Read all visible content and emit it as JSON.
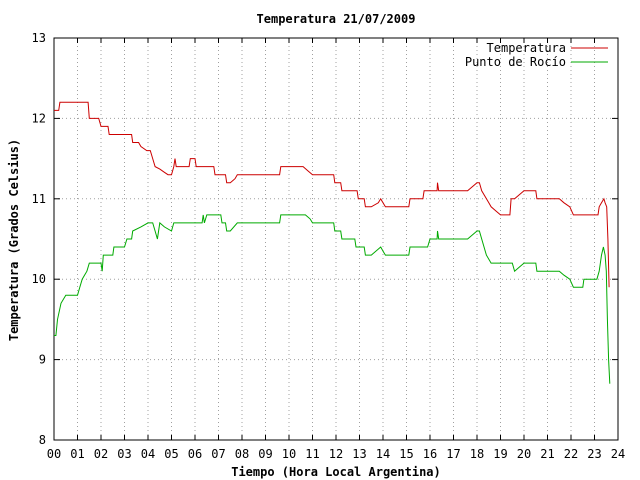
{
  "chart_data": {
    "type": "line",
    "title": "Temperatura 21/07/2009",
    "xlabel": "Tiempo (Hora Local Argentina)",
    "ylabel": "Temperatura (Grados Celsius)",
    "xlim": [
      0,
      24
    ],
    "ylim": [
      8,
      13
    ],
    "x_ticks": [
      "00",
      "01",
      "02",
      "03",
      "04",
      "05",
      "06",
      "07",
      "08",
      "09",
      "10",
      "11",
      "12",
      "13",
      "14",
      "15",
      "16",
      "17",
      "18",
      "19",
      "20",
      "21",
      "22",
      "23",
      "24"
    ],
    "y_ticks": [
      "8",
      "9",
      "10",
      "11",
      "12",
      "13"
    ],
    "grid": true,
    "legend_position": "top-right",
    "series": [
      {
        "name": "Temperatura",
        "color": "#cc0000",
        "points": [
          [
            0.0,
            12.1
          ],
          [
            0.2,
            12.1
          ],
          [
            0.25,
            12.2
          ],
          [
            1.0,
            12.2
          ],
          [
            1.45,
            12.2
          ],
          [
            1.5,
            12.0
          ],
          [
            1.9,
            12.0
          ],
          [
            2.0,
            11.9
          ],
          [
            2.3,
            11.9
          ],
          [
            2.35,
            11.8
          ],
          [
            3.0,
            11.8
          ],
          [
            3.3,
            11.8
          ],
          [
            3.35,
            11.7
          ],
          [
            3.6,
            11.7
          ],
          [
            3.7,
            11.65
          ],
          [
            3.95,
            11.6
          ],
          [
            4.1,
            11.6
          ],
          [
            4.2,
            11.5
          ],
          [
            4.3,
            11.4
          ],
          [
            4.5,
            11.37
          ],
          [
            4.7,
            11.33
          ],
          [
            4.85,
            11.3
          ],
          [
            5.0,
            11.3
          ],
          [
            5.1,
            11.4
          ],
          [
            5.15,
            11.5
          ],
          [
            5.2,
            11.4
          ],
          [
            5.75,
            11.4
          ],
          [
            5.8,
            11.5
          ],
          [
            6.0,
            11.5
          ],
          [
            6.05,
            11.4
          ],
          [
            6.3,
            11.4
          ],
          [
            6.5,
            11.4
          ],
          [
            6.8,
            11.4
          ],
          [
            6.85,
            11.3
          ],
          [
            7.3,
            11.3
          ],
          [
            7.35,
            11.2
          ],
          [
            7.5,
            11.2
          ],
          [
            7.7,
            11.25
          ],
          [
            7.8,
            11.3
          ],
          [
            9.6,
            11.3
          ],
          [
            9.65,
            11.4
          ],
          [
            10.6,
            11.4
          ],
          [
            10.8,
            11.35
          ],
          [
            11.0,
            11.3
          ],
          [
            11.9,
            11.3
          ],
          [
            11.95,
            11.2
          ],
          [
            12.2,
            11.2
          ],
          [
            12.25,
            11.1
          ],
          [
            12.9,
            11.1
          ],
          [
            12.95,
            11.0
          ],
          [
            13.2,
            11.0
          ],
          [
            13.25,
            10.9
          ],
          [
            13.5,
            10.9
          ],
          [
            13.8,
            10.95
          ],
          [
            13.9,
            11.0
          ],
          [
            14.0,
            10.95
          ],
          [
            14.1,
            10.9
          ],
          [
            15.1,
            10.9
          ],
          [
            15.15,
            11.0
          ],
          [
            15.7,
            11.0
          ],
          [
            15.75,
            11.1
          ],
          [
            16.3,
            11.1
          ],
          [
            16.32,
            11.2
          ],
          [
            16.37,
            11.1
          ],
          [
            17.6,
            11.1
          ],
          [
            17.8,
            11.15
          ],
          [
            18.0,
            11.2
          ],
          [
            18.1,
            11.2
          ],
          [
            18.2,
            11.1
          ],
          [
            18.5,
            10.95
          ],
          [
            18.6,
            10.9
          ],
          [
            18.8,
            10.85
          ],
          [
            19.0,
            10.8
          ],
          [
            19.4,
            10.8
          ],
          [
            19.45,
            11.0
          ],
          [
            19.6,
            11.0
          ],
          [
            20.0,
            11.1
          ],
          [
            20.5,
            11.1
          ],
          [
            20.55,
            11.0
          ],
          [
            21.5,
            11.0
          ],
          [
            21.7,
            10.95
          ],
          [
            21.95,
            10.9
          ],
          [
            22.1,
            10.8
          ],
          [
            23.0,
            10.8
          ],
          [
            23.15,
            10.8
          ],
          [
            23.2,
            10.9
          ],
          [
            23.3,
            10.95
          ],
          [
            23.4,
            11.0
          ],
          [
            23.45,
            10.95
          ],
          [
            23.52,
            10.9
          ],
          [
            23.57,
            10.5
          ],
          [
            23.62,
            9.9
          ]
        ]
      },
      {
        "name": "Punto de Rocío",
        "color": "#00aa00",
        "points": [
          [
            0.0,
            9.3
          ],
          [
            0.08,
            9.3
          ],
          [
            0.15,
            9.5
          ],
          [
            0.3,
            9.7
          ],
          [
            0.5,
            9.8
          ],
          [
            1.0,
            9.8
          ],
          [
            1.1,
            9.9
          ],
          [
            1.2,
            10.0
          ],
          [
            1.3,
            10.05
          ],
          [
            1.4,
            10.1
          ],
          [
            1.5,
            10.2
          ],
          [
            2.0,
            10.2
          ],
          [
            2.05,
            10.1
          ],
          [
            2.1,
            10.3
          ],
          [
            2.5,
            10.3
          ],
          [
            2.55,
            10.4
          ],
          [
            3.0,
            10.4
          ],
          [
            3.1,
            10.5
          ],
          [
            3.3,
            10.5
          ],
          [
            3.35,
            10.6
          ],
          [
            3.7,
            10.65
          ],
          [
            4.0,
            10.7
          ],
          [
            4.2,
            10.7
          ],
          [
            4.3,
            10.6
          ],
          [
            4.4,
            10.5
          ],
          [
            4.5,
            10.7
          ],
          [
            4.7,
            10.65
          ],
          [
            5.0,
            10.6
          ],
          [
            5.1,
            10.7
          ],
          [
            6.3,
            10.7
          ],
          [
            6.35,
            10.8
          ],
          [
            6.4,
            10.7
          ],
          [
            6.5,
            10.8
          ],
          [
            7.1,
            10.8
          ],
          [
            7.15,
            10.7
          ],
          [
            7.3,
            10.7
          ],
          [
            7.35,
            10.6
          ],
          [
            7.5,
            10.6
          ],
          [
            7.8,
            10.7
          ],
          [
            9.6,
            10.7
          ],
          [
            9.65,
            10.8
          ],
          [
            10.7,
            10.8
          ],
          [
            10.9,
            10.75
          ],
          [
            11.0,
            10.7
          ],
          [
            11.9,
            10.7
          ],
          [
            11.95,
            10.6
          ],
          [
            12.2,
            10.6
          ],
          [
            12.25,
            10.5
          ],
          [
            12.8,
            10.5
          ],
          [
            12.85,
            10.4
          ],
          [
            13.2,
            10.4
          ],
          [
            13.25,
            10.3
          ],
          [
            13.5,
            10.3
          ],
          [
            13.9,
            10.4
          ],
          [
            14.0,
            10.35
          ],
          [
            14.1,
            10.3
          ],
          [
            15.1,
            10.3
          ],
          [
            15.15,
            10.4
          ],
          [
            15.9,
            10.4
          ],
          [
            16.0,
            10.5
          ],
          [
            16.3,
            10.5
          ],
          [
            16.32,
            10.6
          ],
          [
            16.37,
            10.5
          ],
          [
            17.6,
            10.5
          ],
          [
            17.8,
            10.55
          ],
          [
            18.0,
            10.6
          ],
          [
            18.1,
            10.6
          ],
          [
            18.2,
            10.5
          ],
          [
            18.4,
            10.3
          ],
          [
            18.6,
            10.2
          ],
          [
            19.1,
            10.2
          ],
          [
            19.5,
            10.2
          ],
          [
            19.6,
            10.1
          ],
          [
            19.8,
            10.15
          ],
          [
            20.0,
            10.2
          ],
          [
            20.5,
            10.2
          ],
          [
            20.55,
            10.1
          ],
          [
            21.5,
            10.1
          ],
          [
            21.7,
            10.05
          ],
          [
            21.95,
            10.0
          ],
          [
            22.1,
            9.9
          ],
          [
            22.5,
            9.9
          ],
          [
            22.55,
            10.0
          ],
          [
            23.1,
            10.0
          ],
          [
            23.2,
            10.1
          ],
          [
            23.3,
            10.3
          ],
          [
            23.38,
            10.4
          ],
          [
            23.45,
            10.3
          ],
          [
            23.5,
            10.1
          ],
          [
            23.55,
            9.5
          ],
          [
            23.6,
            9.0
          ],
          [
            23.65,
            8.7
          ]
        ]
      }
    ]
  }
}
